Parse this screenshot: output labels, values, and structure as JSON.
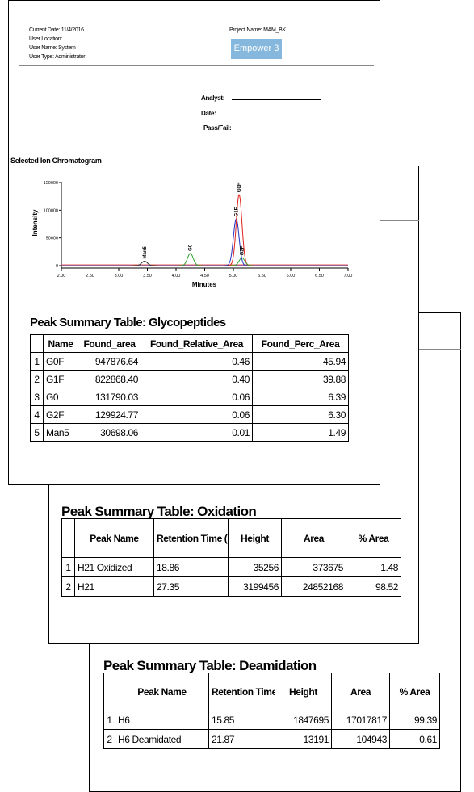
{
  "page1": {
    "header": {
      "current_date": "Current Date: 11/4/2016",
      "user_location": "User Location:",
      "user_name": "User Name: System",
      "user_type": "User Type: Administrator",
      "project_name": "Project Name: MAM_BK",
      "logo": "Empower 3"
    },
    "signoff": [
      "Analyst:",
      "Date:",
      "Pass/Fail:"
    ],
    "chart_data": {
      "type": "chromatogram",
      "title": "Selected Ion Chromatogram",
      "x_label": "Minutes",
      "y_label": "Intensity",
      "xlim": [
        2,
        7
      ],
      "ylim": [
        0,
        150000
      ],
      "xticks": [
        {
          "value": 2,
          "label": "2.00"
        },
        {
          "value": 2.5,
          "label": "2.50"
        },
        {
          "value": 3,
          "label": "3.00"
        },
        {
          "value": 3.5,
          "label": "3.50"
        },
        {
          "value": 4,
          "label": "4.00"
        },
        {
          "value": 4.5,
          "label": "4.50"
        },
        {
          "value": 5,
          "label": "5.00"
        },
        {
          "value": 5.5,
          "label": "5.50"
        },
        {
          "value": 6,
          "label": "6.00"
        },
        {
          "value": 6.5,
          "label": "6.50"
        },
        {
          "value": 7,
          "label": "7.00"
        }
      ],
      "yticks": [
        0,
        50000,
        100000,
        150000
      ],
      "peaks": [
        {
          "name": "Man5",
          "x": 3.45,
          "height": 8000,
          "color": "#333333"
        },
        {
          "name": "G0",
          "x": 4.25,
          "height": 22000,
          "color": "#2ca02c"
        },
        {
          "name": "G1F",
          "x": 5.05,
          "height": 84000,
          "color": "#2030c0"
        },
        {
          "name": "G0F",
          "x": 5.1,
          "height": 128000,
          "color": "#e0201a"
        },
        {
          "name": "G2F",
          "x": 5.15,
          "height": 14000,
          "color": "#2ca02c"
        }
      ]
    },
    "table": {
      "title": "Peak Summary Table: Glycopeptides",
      "columns": [
        "Name",
        "Found_area",
        "Found_Relative_Area",
        "Found_Perc_Area"
      ],
      "rows": [
        [
          "1",
          "G0F",
          "947876.64",
          "0.46",
          "45.94"
        ],
        [
          "2",
          "G1F",
          "822868.40",
          "0.40",
          "39.88"
        ],
        [
          "3",
          "G0",
          "131790.03",
          "0.06",
          "6.39"
        ],
        [
          "4",
          "G2F",
          "129924.77",
          "0.06",
          "6.30"
        ],
        [
          "5",
          "Man5",
          "30698.06",
          "0.01",
          "1.49"
        ]
      ]
    }
  },
  "page2": {
    "table": {
      "title": "Peak Summary Table: Oxidation",
      "columns": [
        "Peak Name",
        "Retention Time (min)",
        "Height",
        "Area",
        "% Area"
      ],
      "rows": [
        [
          "1",
          "H21 Oxidized",
          "18.86",
          "35256",
          "373675",
          "1.48"
        ],
        [
          "2",
          "H21",
          "27.35",
          "3199456",
          "24852168",
          "98.52"
        ]
      ]
    }
  },
  "page3": {
    "table": {
      "title": "Peak Summary Table: Deamidation",
      "columns": [
        "Peak Name",
        "Retention Time (min)",
        "Height",
        "Area",
        "% Area"
      ],
      "rows": [
        [
          "1",
          "H6",
          "15.85",
          "1847695",
          "17017817",
          "99.39"
        ],
        [
          "2",
          "H6 Deamidated",
          "21.87",
          "13191",
          "104943",
          "0.61"
        ]
      ]
    }
  }
}
